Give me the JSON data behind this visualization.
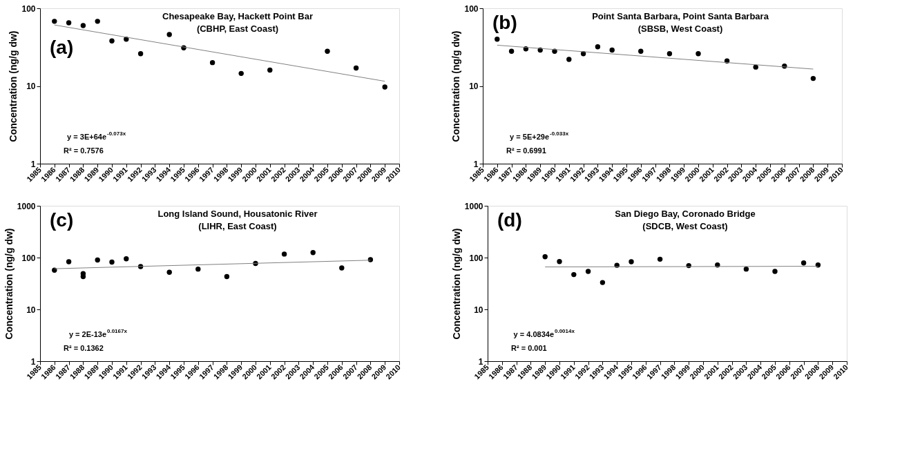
{
  "chart_data": [
    {
      "type": "scatter",
      "title": "Chesapeake Bay, Hackett Point Bar",
      "subtitle": "(CBHP, East Coast)",
      "ylabel": "Concentration (ng/g dw)",
      "log": "y",
      "grid": false,
      "xlim": [
        1985,
        2010
      ],
      "xticks": [
        1985,
        1986,
        1987,
        1988,
        1989,
        1990,
        1991,
        1992,
        1993,
        1994,
        1995,
        1996,
        1997,
        1998,
        1999,
        2000,
        2001,
        2002,
        2003,
        2004,
        2005,
        2006,
        2007,
        2008,
        2009,
        2010
      ],
      "ylim": [
        1,
        100
      ],
      "yticks": [
        1,
        10,
        100
      ],
      "annotations": [
        "(a)",
        "y = 3E+64e$^{-0.073x}$",
        "R² = 0.7576"
      ],
      "series": [
        {
          "marker": "circle",
          "color": "#000000",
          "x": [
            1986,
            1987,
            1988,
            1989,
            1990,
            1991,
            1992,
            1994,
            1995,
            1997,
            1999,
            2001,
            2005,
            2007,
            2009
          ],
          "values": [
            68,
            65,
            60,
            68,
            38,
            40,
            26,
            46,
            31,
            20,
            14.5,
            16,
            28,
            17,
            9.7
          ]
        },
        {
          "type": "line",
          "color": "#808080",
          "x": [
            1986,
            2009
          ],
          "values": [
            61,
            11.5
          ]
        }
      ]
    },
    {
      "type": "scatter",
      "title": "Point Santa Barbara, Point Santa Barbara",
      "subtitle": "(SBSB, West Coast)",
      "ylabel": "Concentration (ng/g dw)",
      "log": "y",
      "grid": false,
      "xlim": [
        1985,
        2010
      ],
      "xticks": [
        1985,
        1986,
        1987,
        1988,
        1989,
        1990,
        1991,
        1992,
        1993,
        1994,
        1995,
        1996,
        1997,
        1998,
        1999,
        2000,
        2001,
        2002,
        2003,
        2004,
        2005,
        2006,
        2007,
        2008,
        2009,
        2010
      ],
      "ylim": [
        1,
        100
      ],
      "yticks": [
        1,
        10,
        100
      ],
      "annotations": [
        "(b)",
        "y = 5E+29e$^{-0.033x}$",
        "R² = 0.6991"
      ],
      "series": [
        {
          "marker": "circle",
          "color": "#000000",
          "x": [
            1986,
            1987,
            1988,
            1989,
            1990,
            1991,
            1992,
            1993,
            1994,
            1996,
            1998,
            2000,
            2002,
            2004,
            2006,
            2008
          ],
          "values": [
            40,
            28,
            30,
            29,
            28,
            22,
            26,
            32,
            29,
            28,
            26,
            26,
            21,
            17.5,
            18,
            12.5
          ]
        },
        {
          "type": "line",
          "color": "#808080",
          "x": [
            1986,
            2008
          ],
          "values": [
            33.5,
            16.5
          ]
        }
      ]
    },
    {
      "type": "scatter",
      "title": "Long Island Sound, Housatonic River",
      "subtitle": "(LIHR, East Coast)",
      "ylabel": "Concentration (ng/g dw)",
      "log": "y",
      "grid": false,
      "xlim": [
        1985,
        2010
      ],
      "xticks": [
        1985,
        1986,
        1987,
        1988,
        1989,
        1990,
        1991,
        1992,
        1993,
        1994,
        1995,
        1996,
        1997,
        1998,
        1999,
        2000,
        2001,
        2002,
        2003,
        2004,
        2005,
        2006,
        2007,
        2008,
        2009,
        2010
      ],
      "ylim": [
        1,
        1000
      ],
      "yticks": [
        1,
        10,
        100,
        1000
      ],
      "annotations": [
        "(c)",
        "y = 2E-13e$^{0.0167x}$",
        "R² = 0.1362"
      ],
      "series": [
        {
          "marker": "circle",
          "color": "#000000",
          "x": [
            1986,
            1987,
            1988,
            1988,
            1989,
            1990,
            1991,
            1992,
            1994,
            1996,
            1998,
            2000,
            2002,
            2004,
            2006,
            2008
          ],
          "values": [
            57,
            83,
            49,
            43,
            90,
            82,
            95,
            67,
            52,
            60,
            43,
            77,
            117,
            125,
            63,
            91
          ]
        },
        {
          "type": "line",
          "color": "#808080",
          "x": [
            1986,
            2008
          ],
          "values": [
            61,
            89
          ]
        }
      ]
    },
    {
      "type": "scatter",
      "title": "San Diego Bay, Coronado Bridge",
      "subtitle": "(SDCB, West Coast)",
      "ylabel": "Concentration (ng/g dw)",
      "log": "y",
      "grid": false,
      "xlim": [
        1985,
        2010
      ],
      "xticks": [
        1985,
        1986,
        1987,
        1988,
        1989,
        1990,
        1991,
        1992,
        1993,
        1994,
        1995,
        1996,
        1997,
        1998,
        1999,
        2000,
        2001,
        2002,
        2003,
        2004,
        2005,
        2006,
        2007,
        2008,
        2009,
        2010
      ],
      "ylim": [
        1,
        1000
      ],
      "yticks": [
        1,
        10,
        100,
        1000
      ],
      "annotations": [
        "(d)",
        "y = 4.0834e$^{0.0014x}$",
        "R² = 0.001"
      ],
      "series": [
        {
          "marker": "circle",
          "color": "#000000",
          "x": [
            1989,
            1990,
            1991,
            1992,
            1993,
            1994,
            1995,
            1997,
            1999,
            2001,
            2003,
            2005,
            2007,
            2008
          ],
          "values": [
            104,
            84,
            47,
            54,
            33,
            71,
            83,
            93,
            70,
            72,
            60,
            54,
            79,
            72
          ]
        },
        {
          "type": "line",
          "color": "#808080",
          "x": [
            1989,
            2008
          ],
          "values": [
            66,
            68
          ]
        }
      ]
    }
  ]
}
